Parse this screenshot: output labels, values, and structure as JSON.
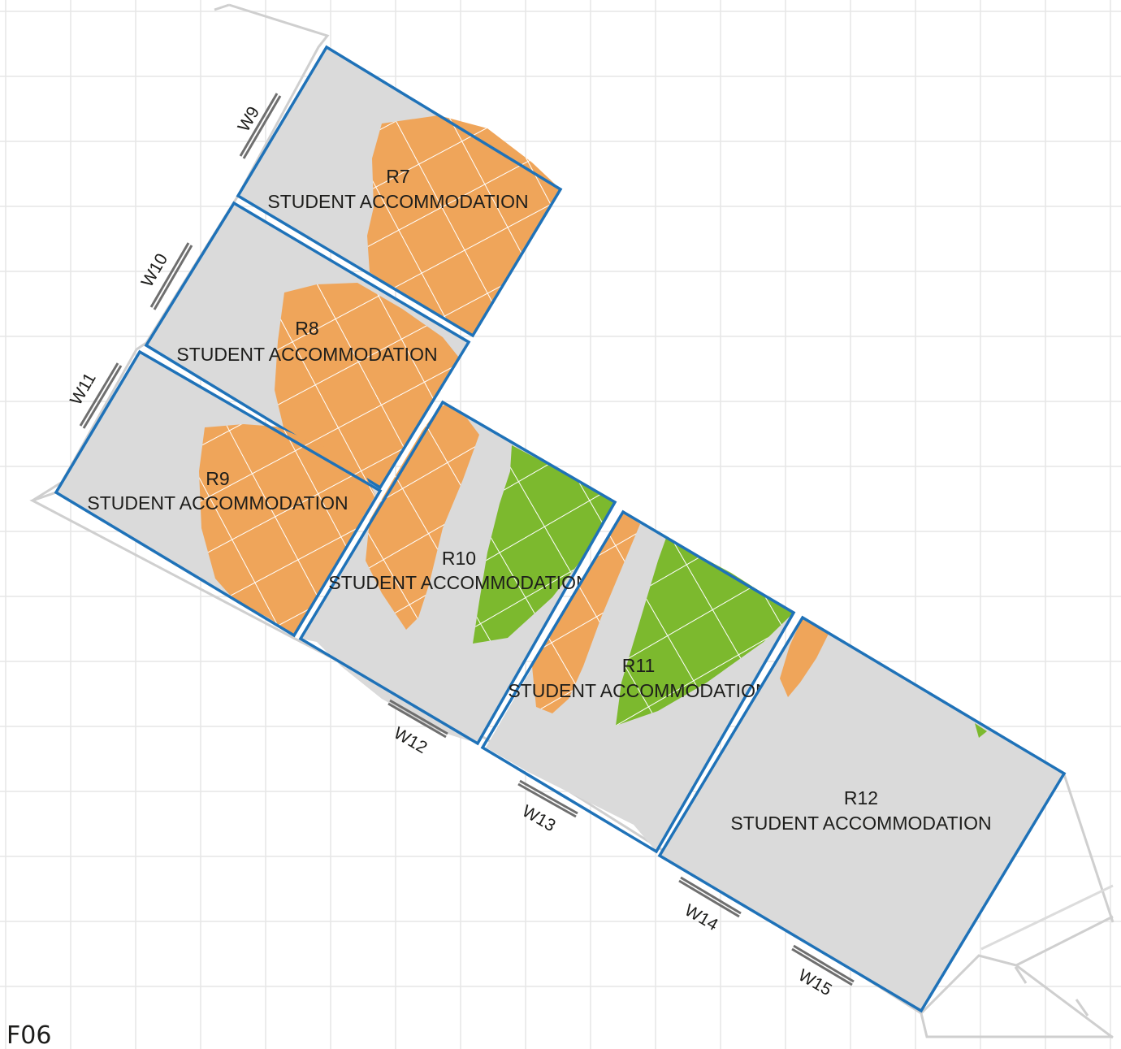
{
  "floor": {
    "label": "F06"
  },
  "colors": {
    "grid": "#e6e6e6",
    "wall": "#cfcfcf",
    "room_outline": "#1f72b8",
    "survey_grey": "#dadada",
    "area_orange": "#efa55a",
    "area_green": "#7cb92e",
    "window": "#6f6f6f",
    "hatch": "#ffffff"
  },
  "rooms": [
    {
      "id": "R7",
      "use": "STUDENT ACCOMMODATION"
    },
    {
      "id": "R8",
      "use": "STUDENT ACCOMMODATION"
    },
    {
      "id": "R9",
      "use": "STUDENT ACCOMMODATION"
    },
    {
      "id": "R10",
      "use": "STUDENT ACCOMMODATION"
    },
    {
      "id": "R11",
      "use": "STUDENT ACCOMMODATION"
    },
    {
      "id": "R12",
      "use": "STUDENT ACCOMMODATION"
    }
  ],
  "windows": [
    "W9",
    "W10",
    "W11",
    "W12",
    "W13",
    "W14",
    "W15"
  ]
}
